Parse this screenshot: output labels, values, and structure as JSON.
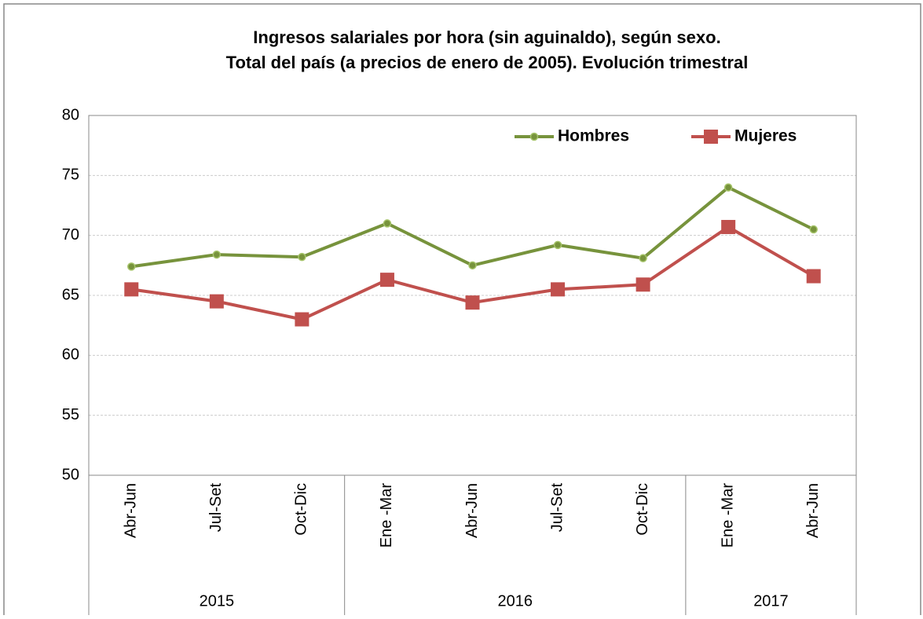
{
  "chart_data": {
    "type": "line",
    "title": [
      "Ingresos salariales por hora (sin aguinaldo), según sexo.",
      "Total del país (a precios de enero de 2005). Evolución trimestral"
    ],
    "category_groups": [
      {
        "name": "2015",
        "categories": [
          "Abr-Jun",
          "Jul-Set",
          "Oct-Dic"
        ]
      },
      {
        "name": "2016",
        "categories": [
          "Ene -Mar",
          "Abr-Jun",
          "Jul-Set",
          "Oct-Dic"
        ]
      },
      {
        "name": "2017",
        "categories": [
          "Ene -Mar",
          "Abr-Jun"
        ]
      }
    ],
    "series": [
      {
        "name": "Hombres",
        "color": "#77933c",
        "marker": "circle",
        "values": [
          67.4,
          68.4,
          68.2,
          71.0,
          67.5,
          69.2,
          68.1,
          74.0,
          70.5
        ]
      },
      {
        "name": "Mujeres",
        "color": "#c0504d",
        "marker": "square",
        "values": [
          65.5,
          64.5,
          63.0,
          66.3,
          64.4,
          65.5,
          65.9,
          70.7,
          66.6
        ]
      }
    ],
    "ylim": [
      50,
      80
    ],
    "yticks": [
      50,
      55,
      60,
      65,
      70,
      75,
      80
    ],
    "grid": true,
    "legend": "top-right"
  }
}
